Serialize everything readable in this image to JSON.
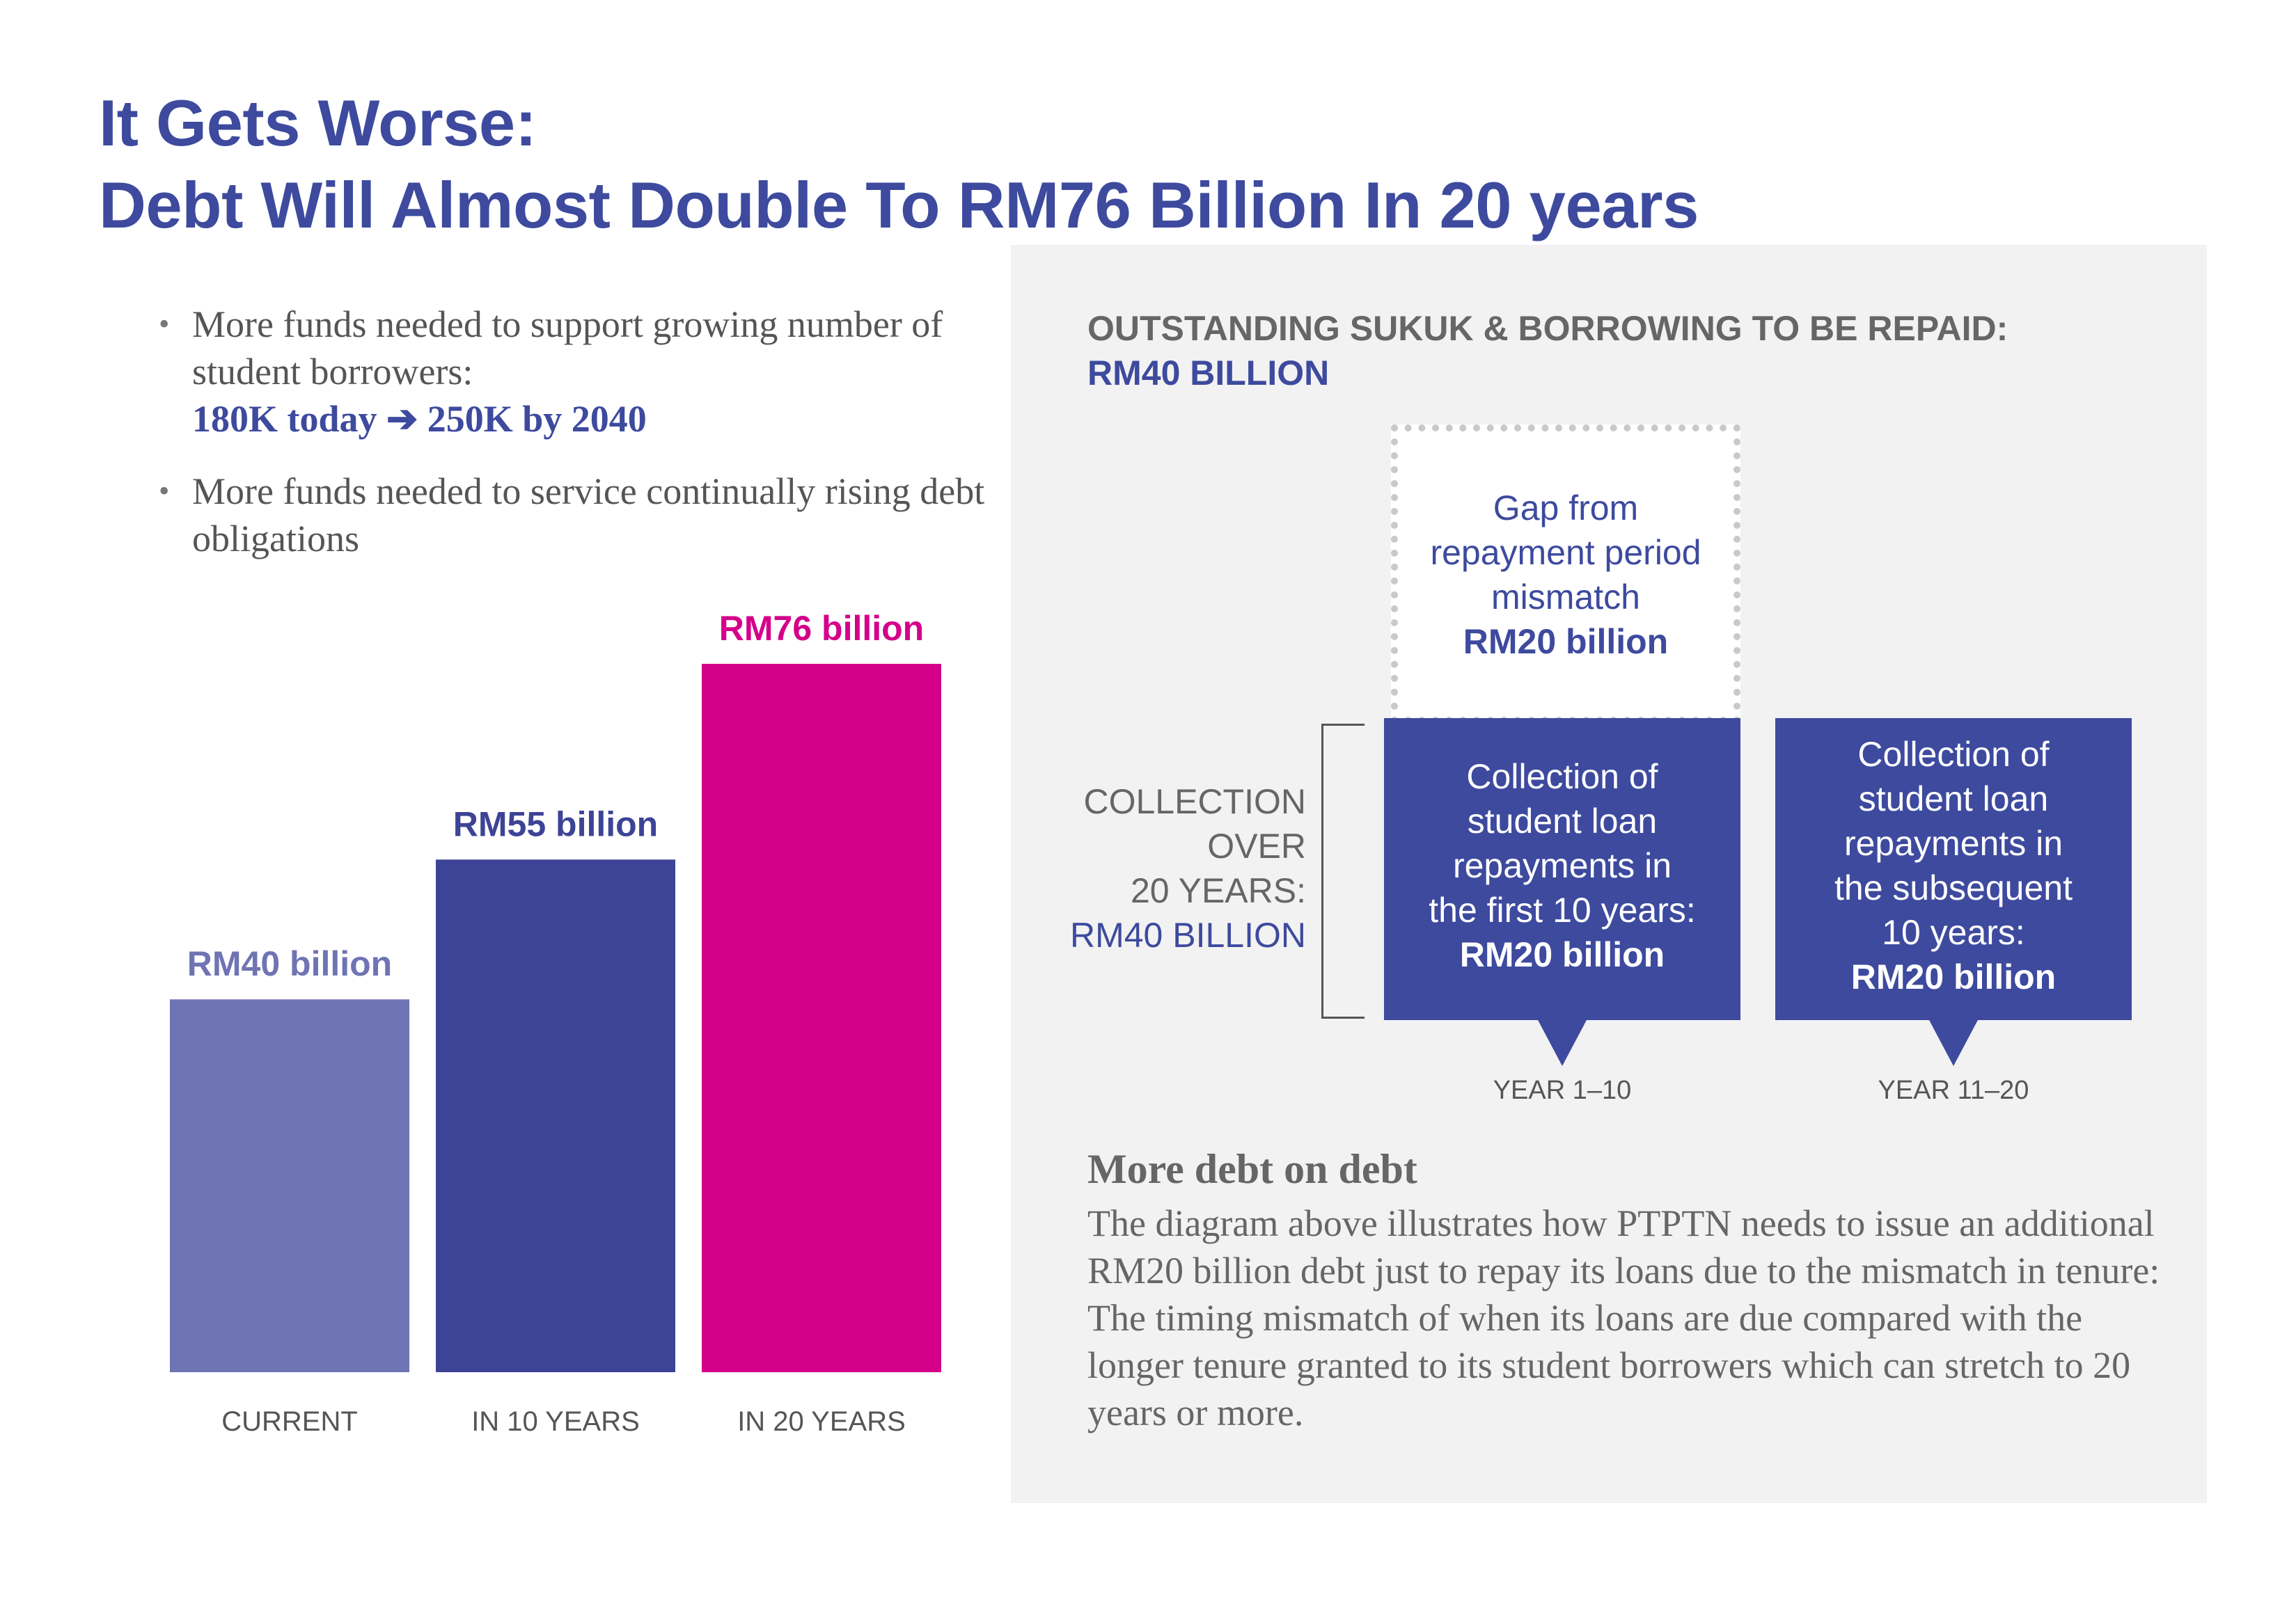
{
  "title": {
    "line1": "It Gets Worse:",
    "line2": "Debt Will Almost Double To RM76 Billion In 20 years"
  },
  "bullets": [
    {
      "text": "More funds needed to support growing number of student borrowers:",
      "highlight": "180K today ➔ 250K by 2040"
    },
    {
      "text": "More funds needed to service continually rising debt obligations",
      "highlight": ""
    }
  ],
  "chart_data": {
    "type": "bar",
    "categories": [
      "CURRENT",
      "IN 10 YEARS",
      "IN 20 YEARS"
    ],
    "values": [
      40,
      55,
      76
    ],
    "data_labels": [
      "RM40 billion",
      "RM55 billion",
      "RM76 billion"
    ],
    "unit": "RM billion",
    "colors": [
      "#6f74b4",
      "#3d4496",
      "#d4008a"
    ],
    "ylim": [
      0,
      76
    ],
    "grid": false,
    "title": "",
    "xlabel": "",
    "ylabel": ""
  },
  "panel": {
    "heading": "OUTSTANDING SUKUK & BORROWING TO BE REPAID:",
    "subheading": "RM40 BILLION",
    "gap_box": {
      "lines": [
        "Gap from",
        "repayment period",
        "mismatch"
      ],
      "amount": "RM20 billion"
    },
    "collection_label": {
      "lines": [
        "COLLECTION",
        "OVER",
        "20 YEARS:"
      ],
      "amount": "RM40 BILLION"
    },
    "boxes": [
      {
        "lines": [
          "Collection of",
          "student loan",
          "repayments in",
          "the first 10 years:"
        ],
        "amount": "RM20 billion",
        "year": "YEAR 1–10"
      },
      {
        "lines": [
          "Collection of",
          "student loan",
          "repayments in",
          "the subsequent",
          "10 years:"
        ],
        "amount": "RM20 billion",
        "year": "YEAR 11–20"
      }
    ],
    "more_title": "More debt on debt",
    "more_body": "The diagram above illustrates how PTPTN needs to issue an additional RM20 billion debt just to repay its loans due to the mismatch in tenure: The timing mismatch of when its loans are due compared with the longer tenure granted to its student borrowers which can stretch to 20 years or more."
  },
  "colors": {
    "accent_blue": "#3d4a9e",
    "magenta": "#d4008a",
    "panel_bg": "#f2f2f2",
    "text_gray": "#666666"
  }
}
